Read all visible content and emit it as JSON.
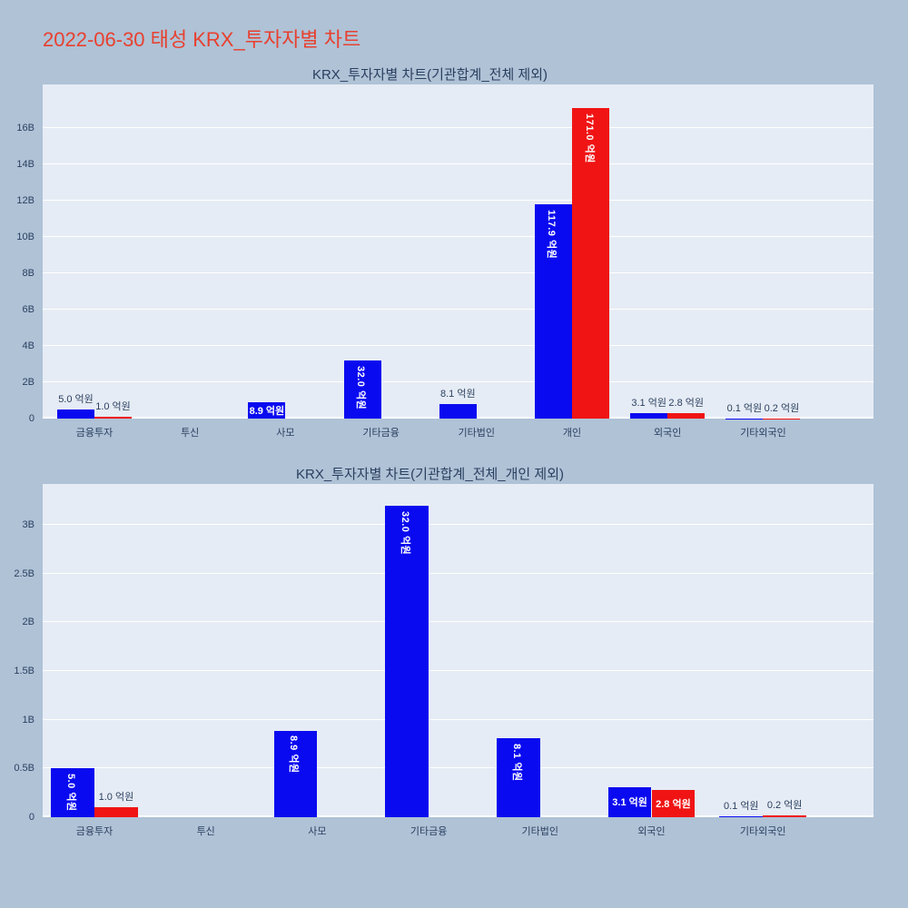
{
  "page_title": "2022-06-30 태성 KRX_투자자별 차트",
  "colors": {
    "page_bg": "#afc2d6",
    "plot_bg": "#e6ecf5",
    "grid": "#ffffff",
    "text": "#2a3f5f",
    "title_red": "#e8402f",
    "bar_blue": "#0a0af0",
    "bar_red": "#f01414",
    "inside_label": "#ffffff"
  },
  "chart_data": [
    {
      "type": "bar",
      "title": "KRX_투자자별 차트(기관합계_전체 제외)",
      "unit": "억원",
      "unit_to_b": 0.1,
      "grid": true,
      "legend": "none",
      "categories": [
        "금융투자",
        "투신",
        "사모",
        "기타금융",
        "기타법인",
        "개인",
        "외국인",
        "기타외국인"
      ],
      "y_axis": {
        "max_b": 18.4,
        "tick_values": [
          0,
          2,
          4,
          6,
          8,
          10,
          12,
          14,
          16
        ],
        "tick_labels": [
          "0",
          "2B",
          "4B",
          "6B",
          "8B",
          "10B",
          "12B",
          "14B",
          "16B"
        ]
      },
      "series": [
        {
          "name": "blue-series",
          "color_key": "bar_blue",
          "values": [
            5.0,
            null,
            8.9,
            32.0,
            8.1,
            117.9,
            3.1,
            0.1
          ],
          "labels": [
            "5.0 억원",
            null,
            "8.9 억원",
            "32.0 억원",
            "8.1 억원",
            "117.9 억원",
            "3.1 억원",
            "0.1 억원"
          ],
          "label_pos": [
            "outside",
            null,
            "inside-h",
            "inside-v",
            "outside",
            "inside-v",
            "outside",
            "outside"
          ]
        },
        {
          "name": "red-series",
          "color_key": "bar_red",
          "values": [
            1.0,
            null,
            null,
            null,
            null,
            171.0,
            2.8,
            0.2
          ],
          "labels": [
            "1.0 억원",
            null,
            null,
            null,
            null,
            "171.0 억원",
            "2.8 억원",
            "0.2 억원"
          ],
          "label_pos": [
            "outside",
            null,
            null,
            null,
            null,
            "inside-v",
            "outside",
            "outside"
          ]
        }
      ]
    },
    {
      "type": "bar",
      "title": "KRX_투자자별 차트(기관합계_전체_개인 제외)",
      "unit": "억원",
      "unit_to_b": 0.1,
      "grid": true,
      "legend": "none",
      "categories": [
        "금융투자",
        "투신",
        "사모",
        "기타금융",
        "기타법인",
        "외국인",
        "기타외국인"
      ],
      "y_axis": {
        "max_b": 3.42,
        "tick_values": [
          0,
          0.5,
          1,
          1.5,
          2,
          2.5,
          3
        ],
        "tick_labels": [
          "0",
          "0.5B",
          "1B",
          "1.5B",
          "2B",
          "2.5B",
          "3B"
        ]
      },
      "series": [
        {
          "name": "blue-series",
          "color_key": "bar_blue",
          "values": [
            5.0,
            null,
            8.9,
            32.0,
            8.1,
            3.1,
            0.1
          ],
          "labels": [
            "5.0 억원",
            null,
            "8.9 억원",
            "32.0 억원",
            "8.1 억원",
            "3.1 억원",
            "0.1 억원"
          ],
          "label_pos": [
            "inside-v",
            null,
            "inside-v",
            "inside-v",
            "inside-v",
            "inside-h",
            "outside"
          ]
        },
        {
          "name": "red-series",
          "color_key": "bar_red",
          "values": [
            1.0,
            null,
            null,
            null,
            null,
            2.8,
            0.2
          ],
          "labels": [
            "1.0 억원",
            null,
            null,
            null,
            null,
            "2.8 억원",
            "0.2 억원"
          ],
          "label_pos": [
            "outside",
            null,
            null,
            null,
            null,
            "inside-h",
            "outside"
          ]
        }
      ]
    }
  ]
}
